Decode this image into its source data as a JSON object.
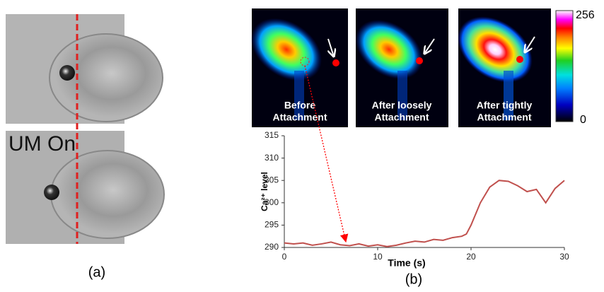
{
  "panel_a": {
    "overlay_text": "UM On",
    "label": "(a)"
  },
  "panel_b": {
    "label": "(b)",
    "images": [
      {
        "caption": [
          "Before",
          "Attachment"
        ]
      },
      {
        "caption": [
          "After loosely",
          "Attachment"
        ]
      },
      {
        "caption": [
          "After tightly",
          "Attachment"
        ]
      }
    ],
    "colorbar": {
      "max": 256,
      "min": 0
    }
  },
  "chart_data": {
    "type": "line",
    "color": "#c0504d",
    "x": [
      0,
      1,
      2,
      3,
      4,
      5,
      6,
      7,
      8,
      9,
      10,
      11,
      12,
      13,
      14,
      15,
      16,
      17,
      18,
      19,
      19.5,
      20,
      21,
      22,
      23,
      24,
      25,
      26,
      27,
      28,
      29,
      30
    ],
    "values": [
      291,
      290.8,
      291,
      290.5,
      290.8,
      291.2,
      290.6,
      290.4,
      290.8,
      290.3,
      290.6,
      290.2,
      290.5,
      291,
      291.4,
      291.2,
      291.8,
      291.6,
      292.2,
      292.5,
      293,
      295,
      300,
      303.5,
      305,
      304.8,
      303.8,
      302.5,
      303,
      300,
      303.2,
      305
    ],
    "xlabel": "Time (s)",
    "ylabel": "Ca²⁺ level",
    "xlim": [
      0,
      30
    ],
    "xticks": [
      0,
      10,
      20,
      30
    ],
    "ylim": [
      290,
      315
    ],
    "yticks": [
      290,
      295,
      300,
      305,
      310,
      315
    ]
  }
}
